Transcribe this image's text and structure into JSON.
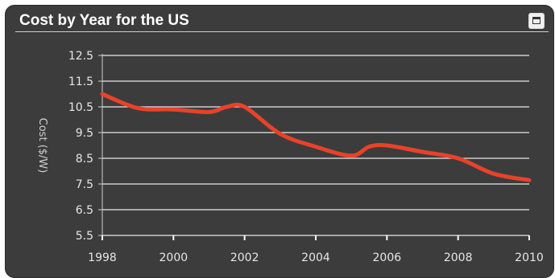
{
  "widget": {
    "title": "Cost by Year for the US",
    "maximize_icon": "maximize-window-icon"
  },
  "colors": {
    "panel_background": "#3c3c3c",
    "gridline": "#e8e8e8",
    "series_line": "#e8422a",
    "text": "#ffffff"
  },
  "chart_data": {
    "type": "line",
    "title": "Cost by Year for the US",
    "xlabel": "",
    "ylabel": "Cost ($/W)",
    "xlim": [
      1998,
      2010
    ],
    "ylim": [
      5.5,
      12.5
    ],
    "x_ticks": [
      1998,
      2000,
      2002,
      2004,
      2006,
      2008,
      2010
    ],
    "y_ticks": [
      "5.5",
      "6.5",
      "7.5",
      "8.5",
      "9.5",
      "10.5",
      "11.5",
      "12.5"
    ],
    "grid": true,
    "legend": "none",
    "series": [
      {
        "x": [
          1998,
          1999,
          2000,
          2001,
          2001.5,
          2002,
          2003,
          2004,
          2005,
          2005.5,
          2006,
          2007,
          2008,
          2009,
          2010
        ],
        "y": [
          11.0,
          10.45,
          10.4,
          10.3,
          10.5,
          10.5,
          9.45,
          8.95,
          8.6,
          8.95,
          9.0,
          8.75,
          8.5,
          7.9,
          7.65
        ]
      }
    ]
  }
}
